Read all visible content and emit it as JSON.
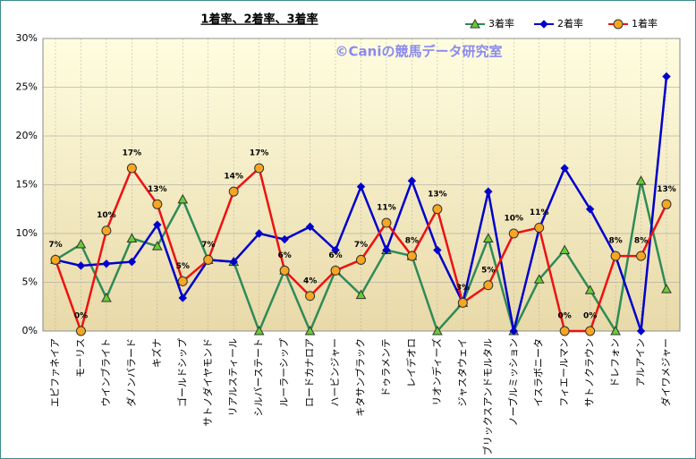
{
  "chart_data": {
    "type": "line",
    "title": "1着率、2着率、3着率",
    "watermark": "©Caniの競馬データ研究室",
    "categories": [
      "エピファネイア",
      "モーリス",
      "ウインブライト",
      "ダノンバラード",
      "キズナ",
      "ゴールドシップ",
      "サトノダイヤモンド",
      "リアルスティール",
      "シルバーステート",
      "ルーラーシップ",
      "ロードカナロア",
      "ハービンジャー",
      "キタサンブラック",
      "ドゥラメンテ",
      "レイデオロ",
      "リオンディーズ",
      "ジャスタウェイ",
      "ブリックスアンドモルタル",
      "ノーブルミッション",
      "イスラボニータ",
      "フィエールマン",
      "サトノクラウン",
      "ドレフォン",
      "アルアイン",
      "ダイワメジャー"
    ],
    "series": [
      {
        "name": "3着率",
        "color": "#2e8b57",
        "marker": "triangle",
        "marker_color": "#66cc33",
        "values": [
          7.3,
          8.9,
          3.4,
          9.5,
          8.7,
          13.5,
          7.3,
          7.1,
          0,
          6.2,
          0,
          6.2,
          3.7,
          8.3,
          7.7,
          0,
          2.9,
          9.5,
          0,
          5.3,
          8.3,
          4.2,
          0,
          15.4,
          4.3
        ]
      },
      {
        "name": "2着率",
        "color": "#0000cc",
        "marker": "diamond",
        "marker_color": "#0000cc",
        "values": [
          7.3,
          6.7,
          6.9,
          7.1,
          10.9,
          3.4,
          7.3,
          7.1,
          10.0,
          9.4,
          10.7,
          8.3,
          14.8,
          8.3,
          15.4,
          8.3,
          2.9,
          14.3,
          0,
          10.5,
          16.7,
          12.5,
          7.7,
          0,
          26.1
        ]
      },
      {
        "name": "1着率",
        "color": "#ee1111",
        "marker": "circle",
        "marker_color": "#f5a623",
        "values": [
          7.3,
          0,
          10.3,
          16.7,
          13.0,
          5.1,
          7.3,
          14.3,
          16.7,
          6.2,
          3.6,
          6.2,
          7.3,
          11.1,
          7.7,
          12.5,
          2.9,
          4.7,
          10.0,
          10.6,
          0,
          0,
          7.7,
          7.7,
          13.0
        ],
        "value_labels": [
          "7%",
          "0%",
          "10%",
          "17%",
          "13%",
          "5%",
          "7%",
          "14%",
          "17%",
          "6%",
          "4%",
          "6%",
          "7%",
          "11%",
          "8%",
          "13%",
          "3%",
          "5%",
          "10%",
          "11%",
          "0%",
          "0%",
          "8%",
          "8%",
          "13%"
        ]
      }
    ],
    "ylim": [
      0,
      30
    ],
    "yticks": [
      {
        "value": 0,
        "label": "0%"
      },
      {
        "value": 5,
        "label": "5%"
      },
      {
        "value": 10,
        "label": "10%"
      },
      {
        "value": 15,
        "label": "15%"
      },
      {
        "value": 20,
        "label": "20%"
      },
      {
        "value": 25,
        "label": "25%"
      },
      {
        "value": 30,
        "label": "30%"
      }
    ],
    "grid": true
  }
}
